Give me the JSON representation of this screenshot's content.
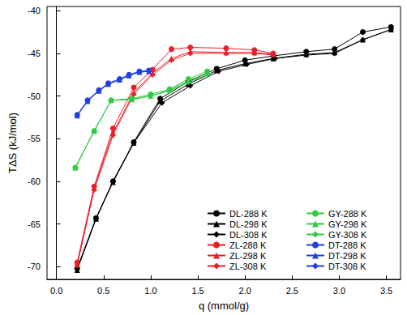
{
  "chart_data": {
    "type": "line",
    "x_label": "q (mmol/g)",
    "y_label": "TΔS (kJ/mol)",
    "xlim": [
      -0.1,
      3.65
    ],
    "xticks": [
      {
        "value": 0,
        "label": "0.0"
      },
      {
        "value": 0.5,
        "label": "0.5"
      },
      {
        "value": 1,
        "label": "1.0"
      },
      {
        "value": 1.5,
        "label": "1.5"
      },
      {
        "value": 2,
        "label": "2.0"
      },
      {
        "value": 2.5,
        "label": "2.5"
      },
      {
        "value": 3,
        "label": "3.0"
      },
      {
        "value": 3.5,
        "label": "3.5"
      }
    ],
    "ylim": [
      -71.5,
      -39.5
    ],
    "yticks": [
      -70,
      -65,
      -60,
      -55,
      -50,
      -45,
      -40
    ],
    "grid": false,
    "legend": "lower right",
    "series": [
      {
        "name": "DL-288 K",
        "color": "#000000",
        "marker": "circle",
        "x": [
          0.22,
          0.42,
          0.6,
          0.82,
          1.1,
          1.4,
          1.7,
          2.0,
          2.3,
          2.65,
          2.95,
          3.25,
          3.55
        ],
        "values": [
          -70.2,
          -64.3,
          -60.0,
          -55.4,
          -50.3,
          -48.3,
          -46.8,
          -45.8,
          -45.3,
          -44.8,
          -44.5,
          -42.5,
          -41.9
        ]
      },
      {
        "name": "DL-298 K",
        "color": "#000000",
        "marker": "triangle",
        "x": [
          0.22,
          0.42,
          0.6,
          0.82,
          1.1,
          1.4,
          1.7,
          2.0,
          2.3,
          2.65,
          2.95,
          3.25,
          3.55
        ],
        "values": [
          -70.4,
          -64.4,
          -60.1,
          -55.5,
          -50.6,
          -48.6,
          -47.0,
          -46.2,
          -45.6,
          -45.1,
          -44.9,
          -43.4,
          -42.2
        ]
      },
      {
        "name": "DL-308 K",
        "color": "#000000",
        "marker": "diamond",
        "x": [
          0.22,
          0.42,
          0.6,
          0.82,
          1.12,
          1.42,
          1.72,
          2.02,
          2.32,
          2.65,
          2.95,
          3.25,
          3.55
        ],
        "values": [
          -70.3,
          -64.4,
          -60.0,
          -55.5,
          -50.8,
          -48.8,
          -47.1,
          -46.3,
          -45.6,
          -45.2,
          -45.0,
          -43.4,
          -42.2
        ]
      },
      {
        "name": "ZL-288 K",
        "color": "#e8202a",
        "marker": "circle",
        "x": [
          0.22,
          0.4,
          0.6,
          0.82,
          1.02,
          1.22,
          1.42,
          1.8,
          2.1,
          2.3
        ],
        "values": [
          -69.5,
          -60.6,
          -53.8,
          -49.0,
          -46.9,
          -44.5,
          -44.3,
          -44.4,
          -44.6,
          -45.0
        ]
      },
      {
        "name": "ZL-298 K",
        "color": "#e8202a",
        "marker": "triangle",
        "x": [
          0.22,
          0.4,
          0.6,
          0.82,
          1.02,
          1.22,
          1.42,
          1.8,
          2.1,
          2.3
        ],
        "values": [
          -69.8,
          -60.8,
          -54.3,
          -49.6,
          -47.3,
          -45.6,
          -44.8,
          -44.9,
          -44.9,
          -45.1
        ]
      },
      {
        "name": "ZL-308 K",
        "color": "#e8202a",
        "marker": "diamond",
        "x": [
          0.22,
          0.4,
          0.6,
          0.82,
          1.02,
          1.22,
          1.42,
          1.8,
          2.1,
          2.3
        ],
        "values": [
          -69.8,
          -61.0,
          -54.6,
          -49.8,
          -47.5,
          -45.8,
          -45.0,
          -45.0,
          -45.0,
          -45.2
        ]
      },
      {
        "name": "GY-288 K",
        "color": "#2ecc40",
        "marker": "circle",
        "x": [
          0.2,
          0.4,
          0.58,
          0.8,
          1.0,
          1.2,
          1.4,
          1.6
        ],
        "values": [
          -58.4,
          -54.1,
          -50.5,
          -50.3,
          -49.8,
          -49.2,
          -48.0,
          -47.1
        ]
      },
      {
        "name": "GY-298 K",
        "color": "#2ecc40",
        "marker": "triangle",
        "x": [
          0.2,
          0.4,
          0.58,
          0.8,
          1.0,
          1.2,
          1.4,
          1.6
        ],
        "values": [
          -58.4,
          -54.1,
          -50.5,
          -50.4,
          -50.0,
          -49.3,
          -48.2,
          -47.3
        ]
      },
      {
        "name": "GY-308 K",
        "color": "#2ecc40",
        "marker": "diamond",
        "x": [
          0.2,
          0.4,
          0.58,
          0.8,
          1.0,
          1.2,
          1.4,
          1.6
        ],
        "values": [
          -58.4,
          -54.1,
          -50.5,
          -50.4,
          -50.0,
          -49.4,
          -48.4,
          -47.5
        ]
      },
      {
        "name": "DT-288 K",
        "color": "#1f3fe0",
        "marker": "circle",
        "x": [
          0.22,
          0.33,
          0.45,
          0.55,
          0.67,
          0.77,
          0.88,
          0.98
        ],
        "values": [
          -52.2,
          -50.5,
          -49.3,
          -48.5,
          -48.0,
          -47.5,
          -47.1,
          -47.0
        ]
      },
      {
        "name": "DT-298 K",
        "color": "#1f3fe0",
        "marker": "triangle",
        "x": [
          0.22,
          0.33,
          0.45,
          0.55,
          0.67,
          0.77,
          0.88,
          0.98
        ],
        "values": [
          -52.3,
          -50.6,
          -49.4,
          -48.6,
          -48.1,
          -47.6,
          -47.2,
          -47.1
        ]
      },
      {
        "name": "DT-308 K",
        "color": "#1f3fe0",
        "marker": "diamond",
        "x": [
          0.22,
          0.33,
          0.45,
          0.55,
          0.67,
          0.77,
          0.88,
          0.98
        ],
        "values": [
          -52.3,
          -50.6,
          -49.4,
          -48.6,
          -48.1,
          -47.6,
          -47.2,
          -47.1
        ]
      }
    ]
  }
}
